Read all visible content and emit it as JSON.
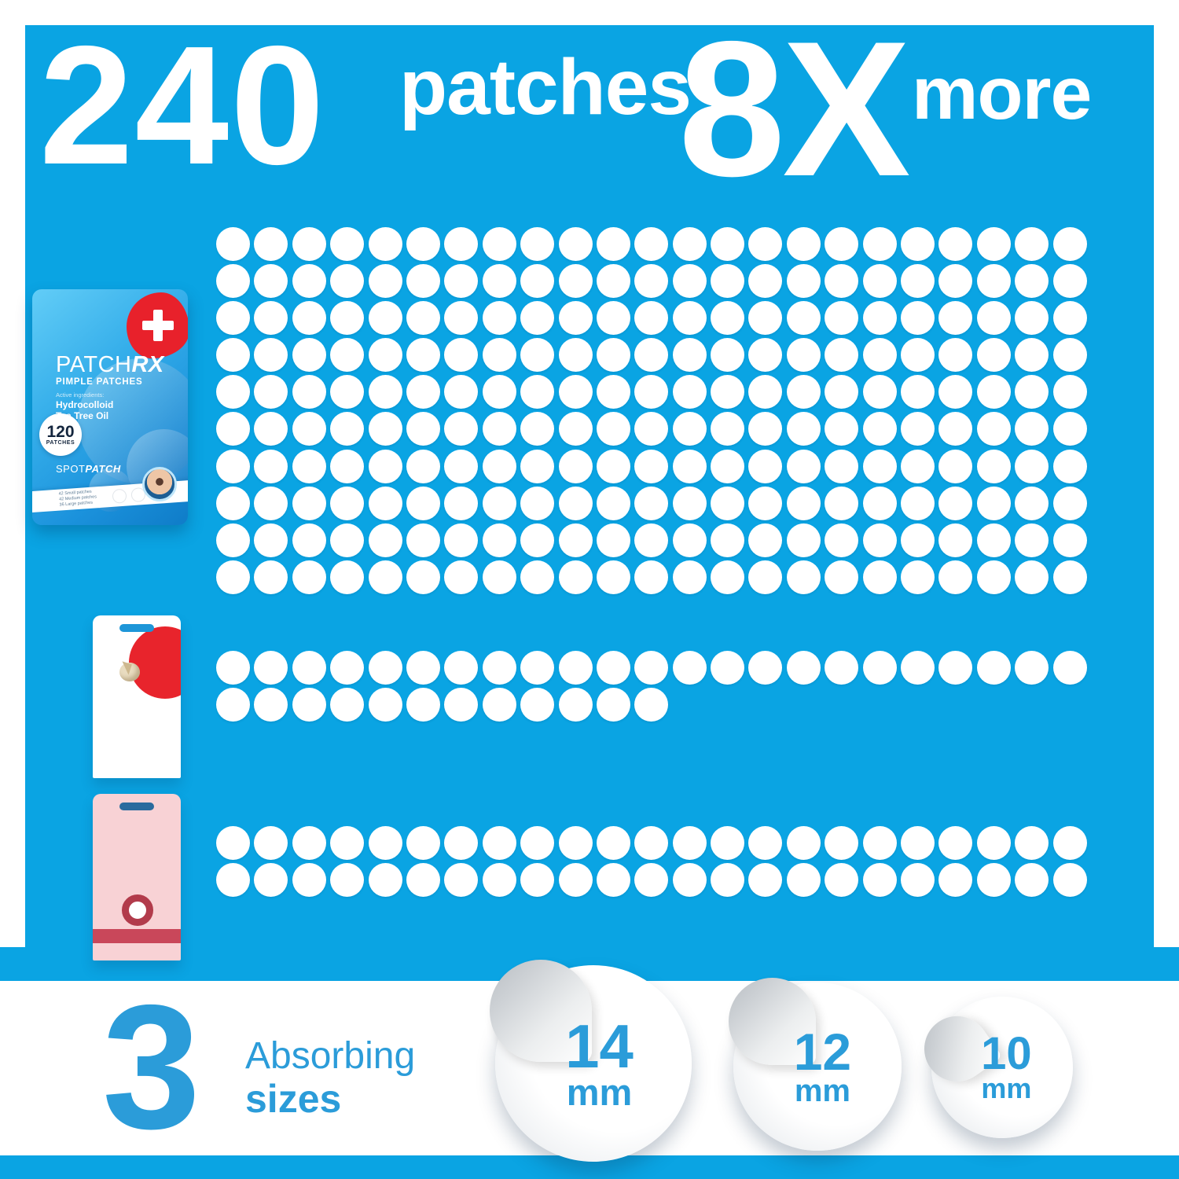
{
  "headline": {
    "count": "240",
    "count_label": "patches",
    "multiplier": "8X",
    "multiplier_label": "more"
  },
  "pouch": {
    "brand_part1": "PATCH",
    "brand_part2": "RX",
    "subtitle": "PIMPLE PATCHES",
    "active_label": "Active ingredients:",
    "ingredient1": "Hydrocolloid",
    "ingredient2": "Tea Tree Oil",
    "badge_count": "120",
    "badge_label": "PATCHES",
    "line_brand_part1": "SPOT",
    "line_brand_part2": "PATCH",
    "contents": [
      "42 Small patches",
      "42 Medium patches",
      "36 Large patches"
    ]
  },
  "dot_groups": {
    "main": {
      "rows": 10,
      "cols": 23
    },
    "mid": {
      "row_counts": [
        23,
        12
      ]
    },
    "bottom": {
      "row_counts": [
        23,
        23
      ]
    }
  },
  "sizes_section": {
    "number": "3",
    "label_line1": "Absorbing",
    "label_line2": "sizes",
    "sizes": [
      {
        "value": "14",
        "unit": "mm"
      },
      {
        "value": "12",
        "unit": "mm"
      },
      {
        "value": "10",
        "unit": "mm"
      }
    ]
  },
  "colors": {
    "panel_blue": "#0aa4e3",
    "accent_blue": "#2b9cd9",
    "badge_red": "#e8212b",
    "pink_box": "#f8d2d5",
    "dot_white": "#ffffff"
  }
}
